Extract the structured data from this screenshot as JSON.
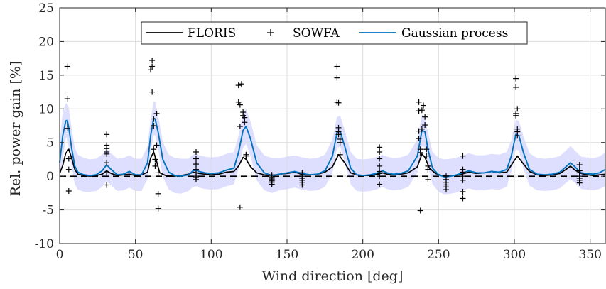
{
  "chart_data": {
    "type": "line",
    "xlabel": "Wind direction [deg]",
    "ylabel": "Rel. power gain [%]",
    "xlim": [
      0,
      360
    ],
    "ylim": [
      -10,
      25
    ],
    "xticks": [
      0,
      50,
      100,
      150,
      200,
      250,
      300,
      350
    ],
    "yticks": [
      -10,
      -5,
      0,
      5,
      10,
      15,
      20,
      25
    ],
    "grid": true,
    "legend": {
      "placement": "top-center",
      "entries": [
        "FLORIS",
        "SOWFA",
        "Gaussian process"
      ]
    },
    "colors": {
      "floris": "#000000",
      "sowfa": "#000000",
      "gp": "#0072BD",
      "band": "#D8D8FF",
      "zero_line": "#000000"
    },
    "series": [
      {
        "name": "FLORIS",
        "style": "line",
        "x": [
          0,
          2,
          4,
          6,
          8,
          10,
          12,
          16,
          20,
          24,
          28,
          31,
          34,
          38,
          42,
          46,
          50,
          54,
          58,
          60,
          62,
          64,
          66,
          70,
          75,
          80,
          85,
          88,
          90,
          92,
          96,
          100,
          105,
          110,
          115,
          118,
          121,
          123,
          126,
          130,
          135,
          140,
          145,
          150,
          155,
          160,
          165,
          170,
          175,
          180,
          184,
          188,
          192,
          196,
          200,
          205,
          210,
          213,
          216,
          220,
          225,
          230,
          236,
          239,
          241,
          244,
          248,
          252,
          256,
          260,
          265,
          270,
          275,
          280,
          285,
          290,
          295,
          299,
          302,
          305,
          310,
          315,
          320,
          325,
          330,
          334,
          337,
          340,
          344,
          348,
          352,
          356,
          360
        ],
        "y": [
          0.4,
          1.6,
          3.4,
          4.0,
          2.6,
          1.0,
          0.3,
          0.1,
          0.0,
          0.1,
          0.3,
          0.8,
          0.4,
          0.1,
          0.2,
          0.3,
          0.1,
          0.2,
          0.6,
          2.7,
          3.6,
          2.2,
          0.5,
          0.1,
          0.0,
          0.1,
          0.3,
          0.6,
          0.5,
          0.4,
          0.3,
          0.2,
          0.3,
          0.6,
          0.7,
          1.5,
          2.8,
          2.5,
          1.4,
          0.5,
          0.2,
          0.1,
          0.3,
          0.4,
          0.6,
          0.3,
          0.2,
          0.3,
          0.6,
          1.4,
          3.2,
          2.0,
          0.5,
          0.2,
          0.1,
          0.1,
          0.3,
          0.5,
          0.3,
          0.2,
          0.3,
          0.5,
          1.4,
          3.3,
          2.8,
          1.2,
          0.4,
          0.1,
          0.0,
          0.1,
          0.3,
          0.6,
          0.4,
          0.5,
          0.7,
          0.5,
          0.6,
          2.0,
          3.0,
          2.1,
          0.7,
          0.2,
          0.1,
          0.2,
          0.4,
          1.0,
          1.5,
          0.9,
          0.4,
          0.2,
          0.1,
          0.2,
          0.3
        ]
      },
      {
        "name": "Gaussian process",
        "style": "line",
        "x": [
          0,
          2,
          4,
          5,
          6,
          8,
          10,
          12,
          16,
          20,
          24,
          28,
          31,
          34,
          38,
          42,
          46,
          50,
          54,
          58,
          60,
          62,
          63,
          65,
          68,
          72,
          76,
          80,
          85,
          88,
          90,
          92,
          96,
          100,
          105,
          110,
          115,
          118,
          121,
          123,
          126,
          130,
          135,
          140,
          145,
          150,
          155,
          160,
          165,
          170,
          175,
          180,
          183,
          185,
          188,
          192,
          196,
          200,
          205,
          210,
          213,
          216,
          220,
          225,
          230,
          236,
          239,
          241,
          243,
          246,
          250,
          254,
          258,
          262,
          266,
          270,
          275,
          280,
          285,
          290,
          295,
          298,
          301,
          303,
          306,
          310,
          315,
          320,
          325,
          330,
          334,
          337,
          340,
          344,
          348,
          352,
          356,
          360
        ],
        "y": [
          2.0,
          6.0,
          8.2,
          8.3,
          7.2,
          4.0,
          1.5,
          0.6,
          0.2,
          0.1,
          0.2,
          0.8,
          1.7,
          1.0,
          0.2,
          0.3,
          0.7,
          0.2,
          0.2,
          2.0,
          6.0,
          8.6,
          8.5,
          6.5,
          2.5,
          0.6,
          0.1,
          0.0,
          0.2,
          0.8,
          0.9,
          0.7,
          0.5,
          0.4,
          0.5,
          0.9,
          1.2,
          3.5,
          6.8,
          7.4,
          5.5,
          2.0,
          0.5,
          0.1,
          0.3,
          0.5,
          0.7,
          0.4,
          0.2,
          0.3,
          0.8,
          3.0,
          6.5,
          6.7,
          4.5,
          1.2,
          0.2,
          0.1,
          0.2,
          0.5,
          0.8,
          0.5,
          0.3,
          0.4,
          0.8,
          3.0,
          6.8,
          6.6,
          4.0,
          1.2,
          0.2,
          -0.1,
          0.0,
          0.2,
          0.5,
          0.8,
          0.5,
          0.5,
          0.7,
          0.6,
          1.0,
          3.0,
          6.2,
          6.0,
          3.5,
          1.0,
          0.3,
          0.2,
          0.3,
          0.6,
          1.4,
          2.0,
          1.4,
          0.5,
          0.4,
          0.3,
          0.5,
          1.0
        ]
      },
      {
        "name": "SOWFA",
        "style": "markers",
        "x": [
          5,
          5,
          5,
          6,
          6,
          6,
          31,
          31,
          31,
          31,
          31,
          31,
          31,
          31,
          60,
          61,
          61,
          61,
          62,
          62,
          62,
          63,
          63,
          64,
          64,
          65,
          65,
          65,
          90,
          90,
          90,
          90,
          90,
          90,
          90,
          90,
          118,
          118,
          119,
          119,
          119,
          120,
          120,
          121,
          121,
          122,
          122,
          123,
          123,
          140,
          140,
          140,
          140,
          140,
          140,
          140,
          160,
          160,
          160,
          160,
          160,
          160,
          160,
          183,
          183,
          183,
          184,
          184,
          184,
          184,
          185,
          185,
          185,
          211,
          211,
          211,
          211,
          211,
          211,
          211,
          211,
          237,
          237,
          237,
          237,
          238,
          238,
          238,
          239,
          239,
          240,
          241,
          241,
          242,
          242,
          243,
          243,
          243,
          255,
          255,
          255,
          255,
          255,
          255,
          266,
          266,
          266,
          266,
          266,
          266,
          266,
          301,
          301,
          301,
          301,
          302,
          302,
          302,
          302,
          343,
          343,
          343,
          343,
          343,
          343,
          343
        ],
        "y": [
          16.3,
          11.5,
          7.1,
          2.6,
          1.0,
          -2.2,
          6.2,
          4.6,
          4.1,
          3.6,
          3.3,
          2.0,
          0.5,
          -1.3,
          15.8,
          17.2,
          16.3,
          12.5,
          8.5,
          7.5,
          4.0,
          2.5,
          1.5,
          4.6,
          9.3,
          0.5,
          -2.6,
          -4.8,
          3.6,
          2.6,
          1.8,
          1.0,
          0.5,
          0.0,
          -0.2,
          -0.5,
          13.5,
          11.0,
          10.6,
          7.4,
          -4.6,
          13.7,
          13.6,
          9.5,
          9.0,
          8.7,
          8.0,
          3.2,
          3.0,
          0.2,
          -0.1,
          -0.3,
          -0.5,
          -0.7,
          -0.9,
          -1.2,
          0.5,
          0.2,
          0.0,
          -0.3,
          -0.6,
          -0.9,
          -1.3,
          16.3,
          14.6,
          11.0,
          10.9,
          7.2,
          6.6,
          6.2,
          5.5,
          5.0,
          3.2,
          4.3,
          3.6,
          2.6,
          1.5,
          0.7,
          0.4,
          0.0,
          -1.2,
          11.0,
          9.7,
          6.7,
          5.6,
          4.0,
          3.5,
          -5.1,
          9.8,
          7.0,
          10.5,
          8.8,
          7.6,
          4.0,
          3.0,
          1.5,
          1.0,
          -0.5,
          0.0,
          -0.5,
          -0.9,
          -1.3,
          -1.6,
          -2.0,
          3.0,
          1.0,
          0.6,
          0.0,
          -0.6,
          -2.3,
          -3.3,
          14.5,
          13.2,
          9.3,
          9.0,
          10.0,
          7.0,
          6.6,
          6.0,
          1.7,
          0.8,
          0.5,
          0.0,
          -0.3,
          -0.6,
          -1.0
        ]
      }
    ],
    "band": {
      "x": [
        0,
        2,
        4,
        5,
        6,
        8,
        10,
        12,
        16,
        20,
        24,
        28,
        31,
        34,
        38,
        42,
        46,
        50,
        54,
        58,
        60,
        62,
        63,
        65,
        68,
        72,
        76,
        80,
        85,
        88,
        90,
        92,
        96,
        100,
        105,
        110,
        115,
        118,
        121,
        123,
        126,
        130,
        135,
        140,
        145,
        150,
        155,
        160,
        165,
        170,
        175,
        180,
        183,
        185,
        188,
        192,
        196,
        200,
        205,
        210,
        213,
        216,
        220,
        225,
        230,
        236,
        239,
        241,
        243,
        246,
        250,
        254,
        258,
        262,
        266,
        270,
        275,
        280,
        285,
        290,
        295,
        298,
        301,
        303,
        306,
        310,
        315,
        320,
        325,
        330,
        334,
        337,
        340,
        344,
        348,
        352,
        356,
        360
      ],
      "lower": [
        -0.8,
        2.4,
        5.6,
        5.8,
        4.2,
        1.2,
        -1.2,
        -2.0,
        -2.3,
        -2.3,
        -2.2,
        -1.6,
        -0.7,
        -1.4,
        -2.2,
        -2.1,
        -1.7,
        -2.2,
        -2.2,
        -0.4,
        3.5,
        6.1,
        6.0,
        4.0,
        -0.1,
        -2.0,
        -2.5,
        -2.6,
        -2.2,
        -1.6,
        -1.5,
        -1.7,
        -1.9,
        -2.0,
        -1.9,
        -1.5,
        -1.2,
        1.0,
        4.2,
        4.8,
        2.9,
        -0.6,
        -2.1,
        -2.5,
        -2.1,
        -1.9,
        -1.7,
        -2.0,
        -2.2,
        -2.1,
        -1.6,
        0.5,
        4.2,
        4.4,
        2.1,
        -1.2,
        -2.2,
        -2.3,
        -2.2,
        -1.9,
        -1.6,
        -1.9,
        -2.1,
        -2.0,
        -1.6,
        0.5,
        4.5,
        4.3,
        1.5,
        -1.2,
        -2.3,
        -2.7,
        -2.6,
        -2.4,
        -2.1,
        -1.8,
        -2.1,
        -2.1,
        -1.9,
        -2.0,
        -1.6,
        0.7,
        4.0,
        3.8,
        1.1,
        -1.4,
        -2.1,
        -2.2,
        -2.1,
        -1.8,
        -1.0,
        -0.5,
        -1.0,
        -1.9,
        -2.0,
        -2.1,
        -1.9,
        -1.5
      ],
      "upper": [
        4.8,
        9.6,
        10.8,
        10.8,
        10.2,
        6.8,
        4.2,
        3.2,
        2.7,
        2.5,
        2.6,
        3.2,
        4.1,
        3.4,
        2.6,
        2.7,
        3.1,
        2.6,
        2.6,
        4.4,
        8.5,
        11.1,
        11.0,
        9.0,
        5.1,
        3.2,
        2.7,
        2.6,
        2.6,
        3.2,
        3.3,
        3.1,
        2.9,
        2.8,
        2.9,
        3.3,
        3.6,
        6.0,
        9.4,
        10.0,
        8.1,
        4.6,
        3.1,
        2.7,
        2.7,
        2.9,
        3.1,
        2.8,
        2.6,
        2.7,
        3.2,
        5.5,
        8.8,
        9.0,
        6.9,
        3.6,
        2.6,
        2.5,
        2.6,
        2.9,
        3.2,
        2.9,
        2.7,
        2.8,
        3.2,
        5.5,
        9.1,
        8.9,
        6.5,
        3.6,
        2.7,
        2.5,
        2.6,
        2.8,
        3.1,
        3.4,
        3.1,
        3.1,
        3.3,
        3.2,
        3.6,
        5.3,
        8.4,
        8.2,
        5.9,
        3.4,
        2.7,
        2.6,
        2.7,
        3.0,
        3.8,
        4.5,
        3.8,
        2.9,
        2.8,
        2.7,
        2.9,
        3.5
      ]
    }
  }
}
